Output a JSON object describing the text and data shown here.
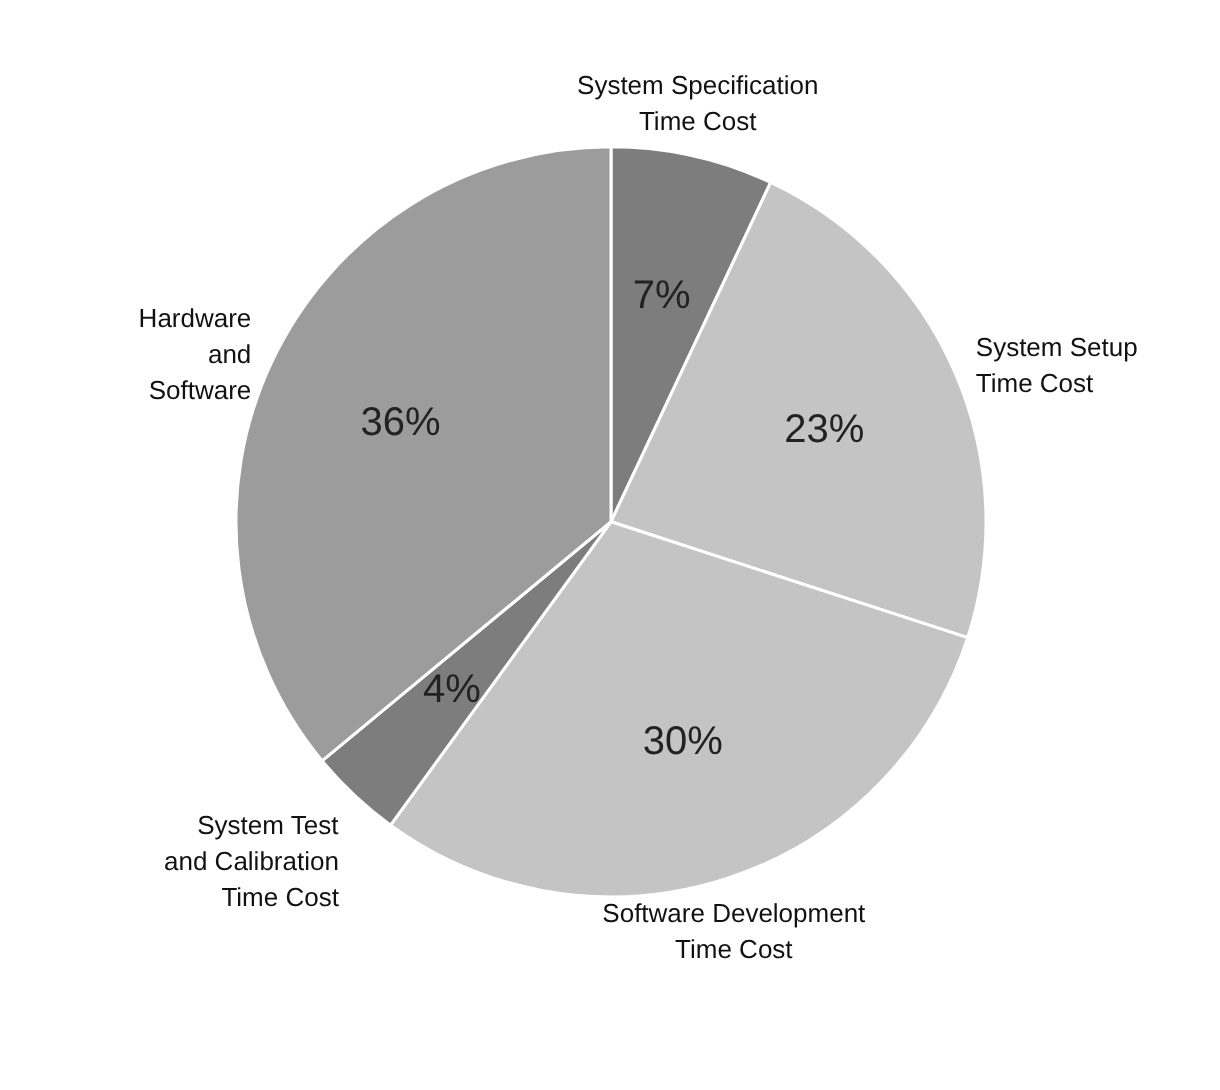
{
  "chart_data": {
    "type": "pie",
    "categories": [
      "System Specification\nTime Cost",
      "System Setup\nTime Cost",
      "Software Development\nTime Cost",
      "System Test\nand Calibration\nTime Cost",
      "Hardware\nand\nSoftware"
    ],
    "values": [
      7,
      23,
      30,
      4,
      36
    ],
    "colors": [
      "#7d7d7d",
      "#c4c4c4",
      "#c4c4c4",
      "#7d7d7d",
      "#9c9c9c"
    ],
    "value_labels": [
      "7%",
      "23%",
      "30%",
      "4%",
      "36%"
    ]
  }
}
